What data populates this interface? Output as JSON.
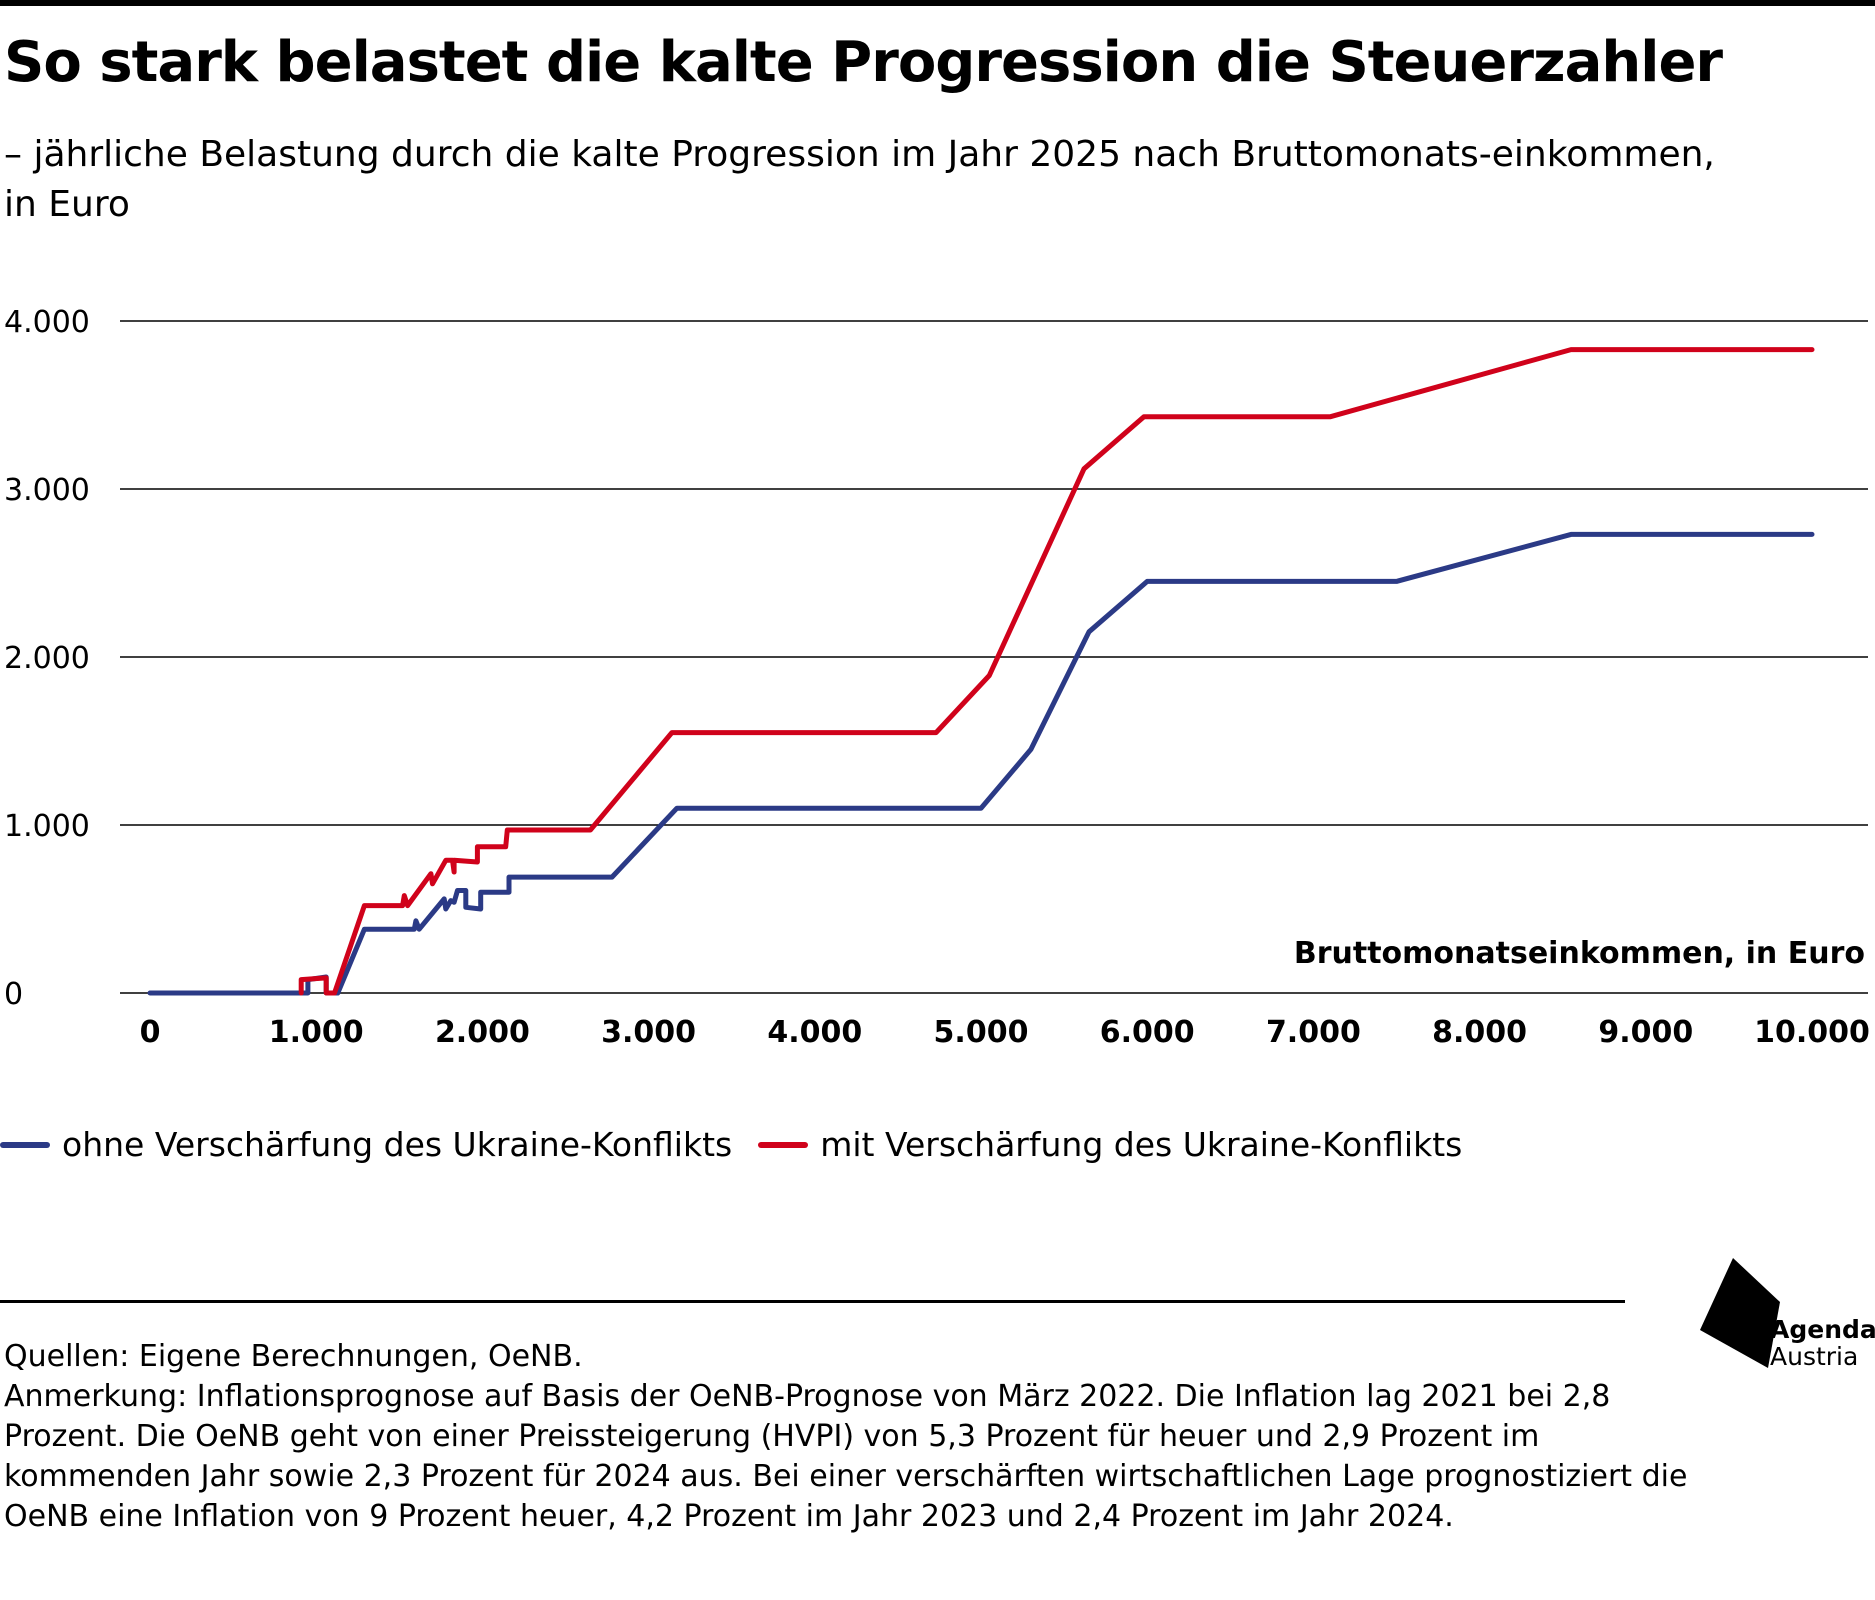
{
  "header": {
    "title": "So stark belastet die kalte Progression die Steuerzahler",
    "subtitle": "– jährliche Belastung durch die kalte Progression im Jahr 2025 nach Bruttomonats-einkommen, in Euro"
  },
  "chart_data": {
    "type": "line",
    "xlabel": "Bruttomonatseinkommen, in Euro",
    "ylabel": "",
    "xlim": [
      0,
      10000
    ],
    "ylim": [
      0,
      4000
    ],
    "x_ticks": [
      0,
      1000,
      2000,
      3000,
      4000,
      5000,
      6000,
      7000,
      8000,
      9000,
      10000
    ],
    "x_tick_labels": [
      "0",
      "1.000",
      "2.000",
      "3.000",
      "4.000",
      "5.000",
      "6.000",
      "7.000",
      "8.000",
      "9.000",
      "10.000"
    ],
    "y_ticks": [
      0,
      1000,
      2000,
      3000,
      4000
    ],
    "y_tick_labels": [
      "0",
      "1.000",
      "2.000",
      "3.000",
      "4.000"
    ],
    "grid": "horizontal",
    "legend_position": "bottom",
    "series": [
      {
        "name": "ohne Verschärfung des Ukraine-Konflikts",
        "color": "#2b3a86",
        "points": [
          [
            0,
            0
          ],
          [
            950,
            0
          ],
          [
            950,
            80
          ],
          [
            1060,
            95
          ],
          [
            1060,
            0
          ],
          [
            1130,
            0
          ],
          [
            1290,
            380
          ],
          [
            1590,
            380
          ],
          [
            1600,
            430
          ],
          [
            1620,
            380
          ],
          [
            1770,
            560
          ],
          [
            1780,
            500
          ],
          [
            1810,
            550
          ],
          [
            1830,
            540
          ],
          [
            1850,
            610
          ],
          [
            1900,
            610
          ],
          [
            1900,
            510
          ],
          [
            1990,
            500
          ],
          [
            1990,
            600
          ],
          [
            2160,
            600
          ],
          [
            2160,
            690
          ],
          [
            2780,
            690
          ],
          [
            3170,
            1100
          ],
          [
            5000,
            1100
          ],
          [
            5300,
            1450
          ],
          [
            5650,
            2150
          ],
          [
            6000,
            2450
          ],
          [
            7500,
            2450
          ],
          [
            8550,
            2730
          ],
          [
            10000,
            2730
          ]
        ]
      },
      {
        "name": "mit Verschärfung des Ukraine-Konflikts",
        "color": "#d0021b",
        "points": [
          [
            910,
            0
          ],
          [
            910,
            80
          ],
          [
            1060,
            90
          ],
          [
            1060,
            0
          ],
          [
            1110,
            0
          ],
          [
            1290,
            520
          ],
          [
            1520,
            520
          ],
          [
            1530,
            580
          ],
          [
            1550,
            520
          ],
          [
            1690,
            710
          ],
          [
            1700,
            650
          ],
          [
            1780,
            790
          ],
          [
            1820,
            790
          ],
          [
            1830,
            720
          ],
          [
            1830,
            790
          ],
          [
            1970,
            780
          ],
          [
            1970,
            870
          ],
          [
            2140,
            870
          ],
          [
            2150,
            970
          ],
          [
            2650,
            970
          ],
          [
            3140,
            1550
          ],
          [
            4730,
            1550
          ],
          [
            5050,
            1890
          ],
          [
            5620,
            3120
          ],
          [
            5980,
            3430
          ],
          [
            7100,
            3430
          ],
          [
            8550,
            3830
          ],
          [
            10000,
            3830
          ]
        ]
      }
    ]
  },
  "footer": {
    "sources": "Quellen: Eigene Berechnungen, OeNB.",
    "note": "Anmerkung: Inflationsprognose auf Basis der OeNB-Prognose von März 2022. Die Inflation lag 2021 bei 2,8 Prozent. Die OeNB geht von einer Preissteigerung (HVPI) von 5,3 Prozent für heuer und 2,9 Prozent im kommenden Jahr sowie 2,3 Prozent für 2024 aus. Bei einer verschärften wirtschaftlichen Lage prognostiziert die OeNB eine Inflation von 9 Prozent heuer, 4,2 Prozent im Jahr 2023 und 2,4 Prozent im Jahr 2024."
  },
  "logo": {
    "name": "Agenda",
    "country": "Austria"
  }
}
